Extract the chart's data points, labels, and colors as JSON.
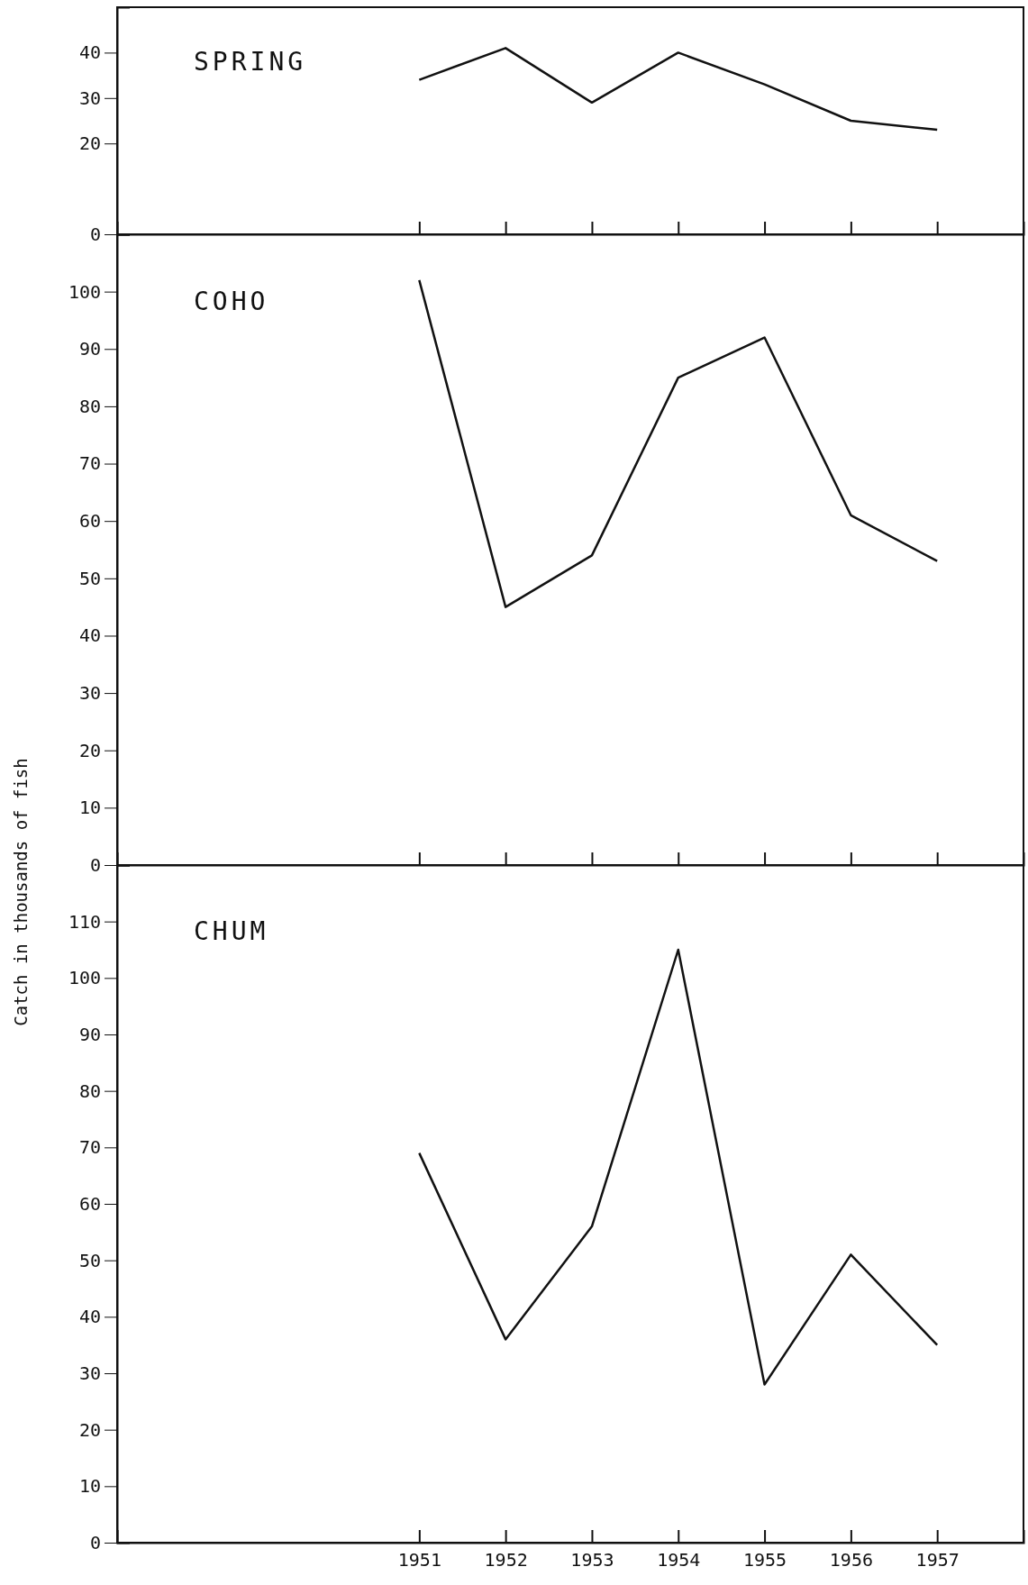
{
  "chart_data": [
    {
      "type": "line",
      "title": "SPRING",
      "x": [
        1951,
        1952,
        1953,
        1954,
        1955,
        1956,
        1957
      ],
      "xlim": [
        1947.5,
        1958
      ],
      "xticks": [
        {
          "value": 1951,
          "label": null
        },
        {
          "value": 1952,
          "label": null
        },
        {
          "value": 1953,
          "label": null
        },
        {
          "value": 1954,
          "label": null
        },
        {
          "value": 1955,
          "label": null
        },
        {
          "value": 1956,
          "label": null
        },
        {
          "value": 1957,
          "label": null
        }
      ],
      "ylim": [
        0,
        50
      ],
      "yticks": [
        0,
        20,
        30,
        40
      ],
      "tick_labels": "y",
      "series": [
        {
          "color": "#111111",
          "values": [
            34,
            41,
            29,
            40,
            33,
            25,
            23
          ]
        }
      ]
    },
    {
      "type": "line",
      "title": "COHO",
      "ylabel": "Catch in thousands of fish",
      "x": [
        1951,
        1952,
        1953,
        1954,
        1955,
        1956,
        1957
      ],
      "xlim": [
        1947.5,
        1958
      ],
      "xticks": [
        {
          "value": 1951,
          "label": null
        },
        {
          "value": 1952,
          "label": null
        },
        {
          "value": 1953,
          "label": null
        },
        {
          "value": 1954,
          "label": null
        },
        {
          "value": 1955,
          "label": null
        },
        {
          "value": 1956,
          "label": null
        },
        {
          "value": 1957,
          "label": null
        }
      ],
      "ylim": [
        0,
        110
      ],
      "yticks": [
        0,
        10,
        20,
        30,
        40,
        50,
        60,
        70,
        80,
        90,
        100
      ],
      "tick_labels": "y",
      "series": [
        {
          "color": "#111111",
          "values": [
            102,
            45,
            54,
            85,
            92,
            61,
            53
          ]
        }
      ]
    },
    {
      "type": "line",
      "title": "CHUM",
      "x": [
        1951,
        1952,
        1953,
        1954,
        1955,
        1956,
        1957
      ],
      "xlim": [
        1947.5,
        1958
      ],
      "xticks": [
        1951,
        1952,
        1953,
        1954,
        1955,
        1956,
        1957
      ],
      "ylim": [
        0,
        120
      ],
      "yticks": [
        0,
        10,
        20,
        30,
        40,
        50,
        60,
        70,
        80,
        90,
        100,
        110
      ],
      "series": [
        {
          "color": "#111111",
          "values": [
            69,
            36,
            56,
            105,
            28,
            51,
            35
          ]
        }
      ]
    }
  ]
}
